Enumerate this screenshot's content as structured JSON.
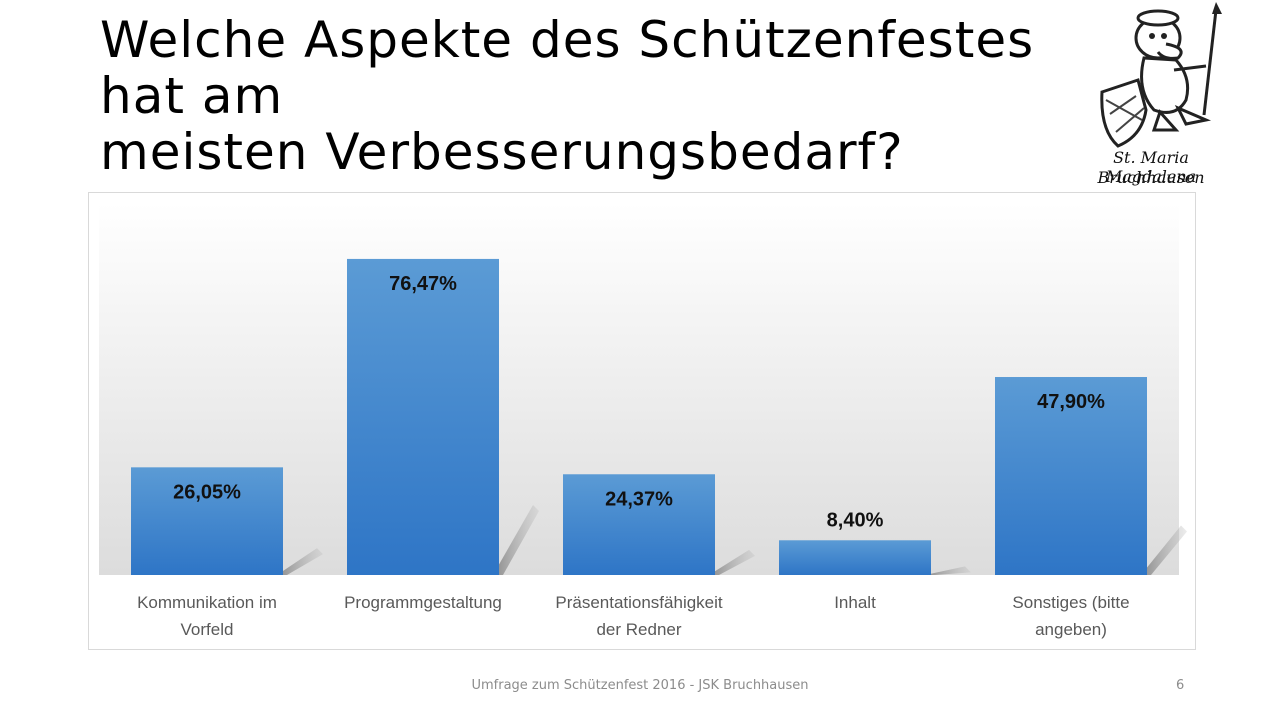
{
  "slide": {
    "title_lines": [
      "Welche Aspekte des Schützenfestes",
      "hat am",
      "meisten Verbesserungsbedarf?"
    ],
    "footer": "Umfrage zum Schützenfest 2016 - JSK Bruchhausen",
    "page_number": "6"
  },
  "logo": {
    "line1": "St. Maria Magdalena",
    "line2": "Bruchhausen",
    "icon": "duck-rifleman-crest-icon"
  },
  "chart_data": {
    "type": "bar",
    "categories": [
      [
        "Kommunikation im",
        "Vorfeld"
      ],
      [
        "Programmgestaltung"
      ],
      [
        "Präsentationsfähigkeit",
        "der Redner"
      ],
      [
        "Inhalt"
      ],
      [
        "Sonstiges (bitte",
        "angeben)"
      ]
    ],
    "values": [
      26.05,
      76.47,
      24.37,
      8.4,
      47.9
    ],
    "data_labels": [
      "26,05%",
      "76,47%",
      "24,37%",
      "8,40%",
      "47,90%"
    ],
    "ylim": [
      0,
      90
    ],
    "grid": false,
    "legend": "none",
    "bar_color_top": "#5b9bd5",
    "bar_color_bottom": "#2e75c6"
  }
}
